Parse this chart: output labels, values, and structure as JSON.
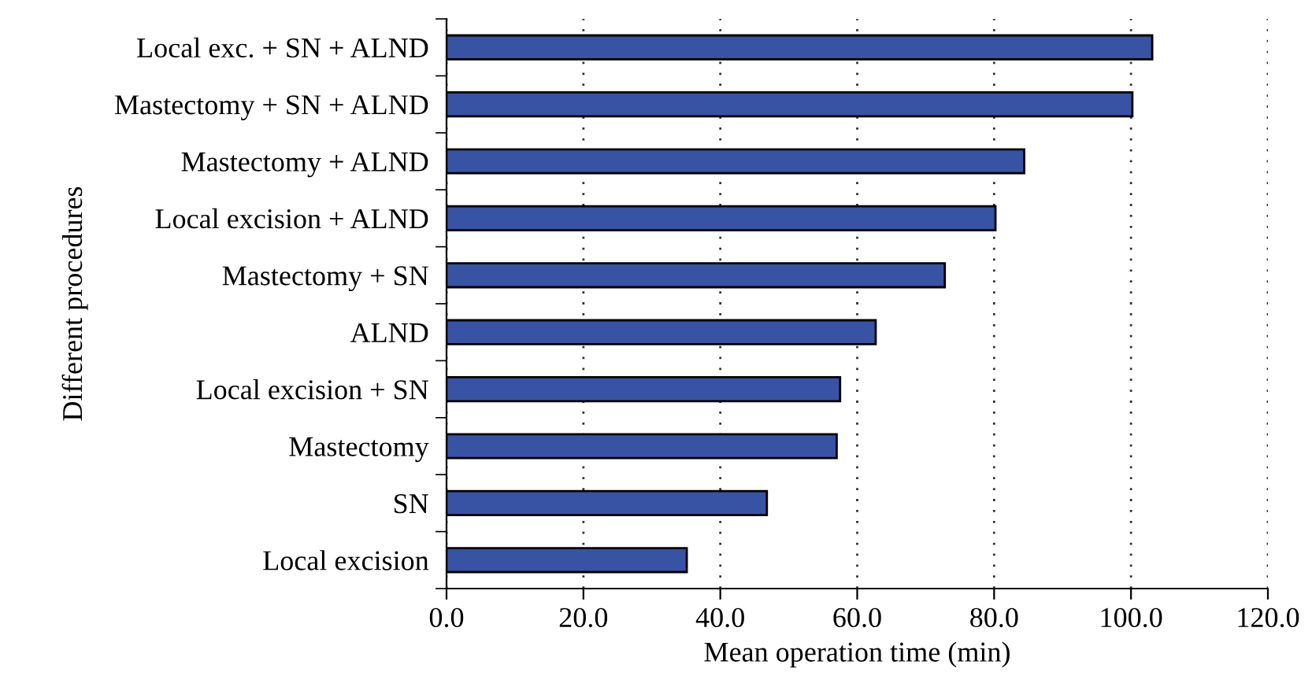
{
  "chart_data": {
    "type": "bar",
    "orientation": "horizontal",
    "xlabel": "Mean operation time (min)",
    "ylabel": "Different procedures",
    "categories": [
      "Local exc. + SN + ALND",
      "Mastectomy + SN + ALND",
      "Mastectomy + ALND",
      "Local excision + ALND",
      "Mastectomy + SN",
      "ALND",
      "Local excision + SN",
      "Mastectomy",
      "SN",
      "Local excision"
    ],
    "values": [
      103.1,
      100.2,
      84.4,
      80.2,
      72.8,
      62.7,
      57.5,
      57.0,
      46.8,
      35.1
    ],
    "color": "#3953a4",
    "xlim": [
      0,
      120
    ],
    "xticks": [
      {
        "value": 0,
        "label": "0.0"
      },
      {
        "value": 20,
        "label": "20.0"
      },
      {
        "value": 40,
        "label": "40.0"
      },
      {
        "value": 60,
        "label": "60.0"
      },
      {
        "value": 80,
        "label": "80.0"
      },
      {
        "value": 100,
        "label": "100.0"
      },
      {
        "value": 120,
        "label": "120.0"
      }
    ],
    "grid": "x",
    "legend": false
  }
}
